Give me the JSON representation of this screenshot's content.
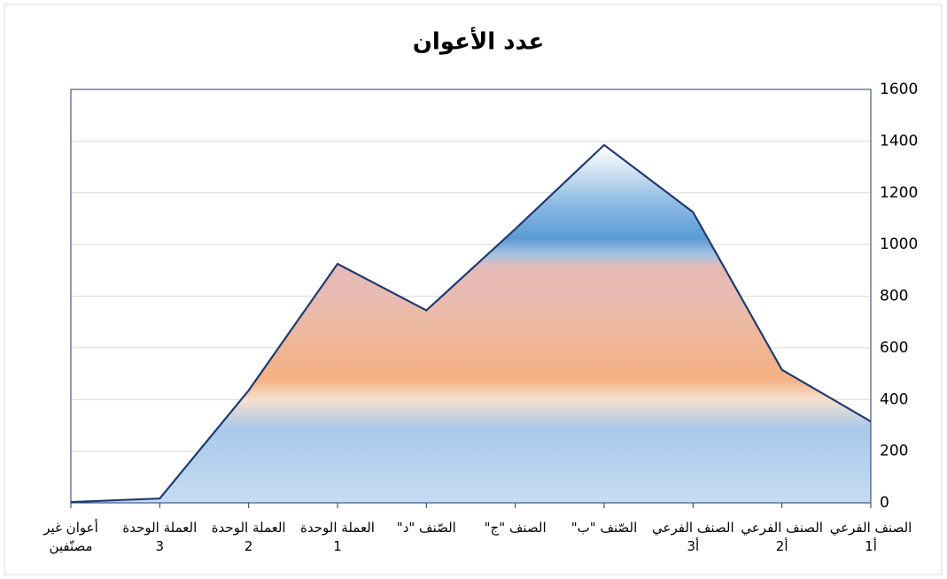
{
  "chart_data": {
    "type": "area",
    "title": "عدد الأعوان",
    "categories": [
      "الصنف الفرعي أ1",
      "الصنف الفرعي أ2",
      "الصنف الفرعي أ3",
      "الصّنف \"ب\"",
      "الصنف \"ج\"",
      "الصّنف \"د\"",
      "العملة الوحدة 1",
      "العملة الوحدة 2",
      "العملة الوحدة 3",
      "أعوان غير مصنّفين"
    ],
    "values": [
      315,
      515,
      1125,
      1385,
      1060,
      745,
      925,
      435,
      17,
      3
    ],
    "color": "#1f3b6e",
    "ylim": [
      0,
      1600
    ],
    "yticks": [
      0,
      200,
      400,
      600,
      800,
      1000,
      1200,
      1400,
      1600
    ],
    "grid": true,
    "x_reversed": true,
    "y_axis_side": "right"
  }
}
